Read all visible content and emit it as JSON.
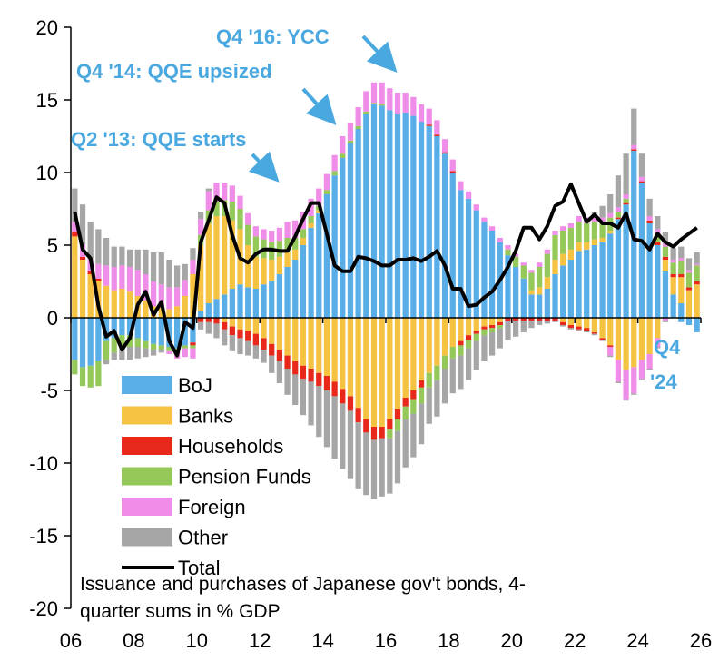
{
  "chart_data": {
    "type": "bar",
    "stacked": true,
    "note": "Issuance and purchases of Japanese gov't bonds, 4-quarter sums in % GDP",
    "note_lines": [
      "Issuance and purchases of Japanese gov't bonds, 4-",
      "quarter sums in % GDP"
    ],
    "ylim": [
      -20,
      20
    ],
    "yticks": [
      20,
      15,
      10,
      5,
      0,
      -5,
      -10,
      -15,
      -20
    ],
    "ytick_labels": [
      "20",
      "15",
      "10",
      "5",
      "0",
      "-5",
      "-10",
      "-15",
      "-20"
    ],
    "xlim": [
      2006,
      2026
    ],
    "xticks": [
      2006,
      2008,
      2010,
      2012,
      2014,
      2016,
      2018,
      2020,
      2022,
      2024,
      2026
    ],
    "xtick_labels": [
      "06",
      "08",
      "10",
      "12",
      "14",
      "16",
      "18",
      "20",
      "22",
      "24",
      "26"
    ],
    "start_label": "2006Q1",
    "colors": {
      "BoJ": "#5aaee8",
      "Banks": "#f5c242",
      "Households": "#e8281a",
      "Pension Funds": "#94c95a",
      "Foreign": "#f08de8",
      "Other": "#a6a6a6",
      "Total": "#000000",
      "annotation": "#4aa8e0"
    },
    "legend": [
      "BoJ",
      "Banks",
      "Households",
      "Pension Funds",
      "Foreign",
      "Other",
      "Total"
    ],
    "legend_placement": "lower-left",
    "annotations": [
      {
        "text": "Q2 '13: QQE starts",
        "x": 2013.25
      },
      {
        "text": "Q4 '14: QQE upsized",
        "x": 2014.75
      },
      {
        "text": "Q4 '16: YCC",
        "x": 2016.75
      }
    ],
    "end_label_lines": [
      "Q4",
      "'24"
    ],
    "series": [
      {
        "name": "BoJ",
        "pos": [
          0,
          0,
          0,
          0,
          0,
          0,
          0,
          0,
          0,
          0,
          0,
          0,
          0,
          0,
          0,
          0,
          0.5,
          1,
          1.3,
          1.6,
          2,
          2.3,
          2.1,
          2,
          2.3,
          2.5,
          3,
          3.5,
          4,
          5,
          6.2,
          7.2,
          8.5,
          9.8,
          11,
          12,
          13,
          14,
          14.7,
          14.6,
          14.3,
          14,
          14.1,
          13.9,
          13.5,
          13.2,
          12.5,
          11.3,
          10,
          8.8,
          8.2,
          7.4,
          6.6,
          6,
          5.2,
          4.3,
          3.5,
          2.7,
          1.6,
          1.6,
          2,
          3,
          3.6,
          4,
          4.6,
          4.7,
          5,
          5.2,
          5.8,
          6.8,
          7.8,
          11.5,
          9.3,
          6.5,
          5,
          3.2,
          1.6,
          1,
          0,
          0
        ],
        "neg": [
          -2.9,
          -3.4,
          -3.3,
          -3,
          -1.6,
          -1.4,
          -1.2,
          -1.2,
          -1.4,
          -1.6,
          -1.8,
          -1.9,
          -2,
          -2.1,
          -1.9,
          -1.7,
          0,
          0,
          0,
          0,
          0,
          0,
          0,
          0,
          0,
          0,
          0,
          0,
          0,
          0,
          0,
          0,
          0,
          0,
          0,
          0,
          0,
          0,
          0,
          0,
          0,
          0,
          0,
          0,
          0,
          0,
          0,
          0,
          0,
          0,
          0,
          0,
          0,
          0,
          0,
          0,
          0,
          0,
          0,
          0,
          0,
          0,
          0,
          0,
          0,
          0,
          0,
          0,
          0,
          0,
          0,
          0,
          0,
          0,
          0,
          0,
          0,
          -0.3,
          -0.5,
          -1
        ]
      },
      {
        "name": "Banks",
        "pos": [
          5.6,
          4,
          3,
          2.5,
          2.2,
          1.9,
          2,
          1.8,
          1.5,
          1.2,
          0.8,
          0.7,
          0.6,
          0.8,
          1.5,
          3,
          4.5,
          5.5,
          5.7,
          5.4,
          4.7,
          3.8,
          2.9,
          2.2,
          1.8,
          1.5,
          1.2,
          1,
          0.7,
          0.5,
          0.3,
          0.2,
          0,
          0,
          0,
          0,
          0,
          0,
          0,
          0,
          0,
          0,
          0,
          0,
          0,
          0,
          0,
          0,
          0,
          0,
          0,
          0,
          0,
          0,
          0,
          0,
          0,
          0,
          0.3,
          0.5,
          0.8,
          1,
          0.8,
          0.7,
          0.6,
          0.5,
          0.4,
          0.3,
          0.2,
          0,
          0,
          0,
          0,
          0,
          0,
          0.8,
          1.2,
          1.8,
          1.9,
          2.3
        ],
        "neg": [
          0,
          0,
          0,
          0,
          0,
          0,
          0,
          0,
          0,
          0,
          0,
          0,
          0,
          0,
          0,
          0,
          0,
          0,
          0,
          -0.3,
          -0.6,
          -0.8,
          -0.9,
          -1.1,
          -1.4,
          -1.8,
          -2.2,
          -2.6,
          -3,
          -3.3,
          -3.5,
          -3.8,
          -4,
          -4.4,
          -4.9,
          -5.4,
          -6.2,
          -7,
          -7.5,
          -7.5,
          -7,
          -6.3,
          -5.5,
          -5,
          -4.3,
          -3.8,
          -3.3,
          -2.6,
          -2,
          -1.6,
          -1.2,
          -0.9,
          -0.6,
          -0.5,
          -0.3,
          0,
          0,
          0,
          0,
          0,
          0,
          0,
          -0.3,
          -0.5,
          -0.6,
          -0.7,
          -1,
          -1.4,
          -1.9,
          -2.9,
          -3.6,
          -3.4,
          -2.9,
          -2.5,
          -1.4,
          0,
          0,
          0,
          0,
          0
        ]
      },
      {
        "name": "Households",
        "pos": [
          0.3,
          0.2,
          0.2,
          0.2,
          0,
          0,
          0,
          0,
          0,
          0,
          0,
          0,
          0,
          0,
          0,
          0,
          0,
          0,
          0,
          0,
          0,
          0,
          0,
          0,
          0,
          0,
          0,
          0,
          0,
          0,
          0,
          0,
          0,
          0,
          0,
          0,
          0,
          0,
          0,
          0,
          0,
          0,
          0,
          0,
          0,
          0.1,
          0.1,
          0.1,
          0.1,
          0,
          0,
          0,
          0,
          0,
          0,
          0,
          0,
          0,
          0,
          0,
          0,
          0,
          0,
          0,
          0,
          0,
          0,
          0,
          0,
          0.1,
          0.1,
          0.1,
          0.1,
          0.2,
          0.2,
          0.2,
          0.2,
          0.2,
          0.2,
          0.2
        ],
        "neg": [
          0,
          0,
          0,
          0,
          0,
          0,
          0,
          0,
          0,
          0,
          0,
          0,
          0,
          0,
          0,
          -0.2,
          -0.3,
          -0.3,
          -0.4,
          -0.5,
          -0.6,
          -0.6,
          -0.7,
          -0.8,
          -0.8,
          -0.8,
          -0.8,
          -0.9,
          -0.9,
          -0.9,
          -0.9,
          -0.9,
          -1,
          -1,
          -1,
          -1,
          -1,
          -0.9,
          -0.9,
          -0.8,
          -0.7,
          -0.7,
          -0.6,
          -0.6,
          -0.5,
          0,
          0,
          0,
          0,
          -0.3,
          -0.3,
          -0.2,
          -0.2,
          -0.2,
          -0.2,
          -0.2,
          -0.2,
          -0.2,
          -0.2,
          -0.2,
          -0.2,
          -0.2,
          -0.2,
          -0.2,
          -0.2,
          -0.2,
          -0.1,
          -0.1,
          -0.1,
          0,
          0,
          0,
          0,
          0,
          0,
          0,
          0,
          0,
          0,
          0
        ]
      },
      {
        "name": "Pension Funds",
        "pos": [
          0,
          0,
          0,
          0,
          0,
          0,
          0,
          0,
          0,
          0,
          0,
          0,
          0,
          0,
          0,
          0,
          0.7,
          0.9,
          1,
          1.1,
          1.3,
          1.4,
          1.4,
          1.4,
          1.3,
          1.2,
          1.1,
          1,
          0.8,
          0.6,
          0.5,
          0.3,
          0.3,
          0.3,
          0.3,
          0.2,
          0.2,
          0.2,
          0.1,
          0.1,
          0,
          0,
          0,
          0,
          0,
          0,
          0,
          0,
          0,
          0,
          0,
          0,
          0,
          0,
          0,
          0.4,
          0.7,
          0.9,
          1.2,
          1.4,
          1.6,
          1.7,
          1.6,
          1.5,
          1.4,
          1.3,
          1.2,
          1.1,
          0.9,
          0.4,
          0.3,
          0,
          0,
          0,
          0.6,
          0.7,
          0.8,
          0.9,
          1,
          1.1
        ],
        "neg": [
          -1,
          -1.3,
          -1.5,
          -1.7,
          -1.3,
          -1,
          -1,
          -0.8,
          -0.6,
          -0.5,
          -0.4,
          -0.3,
          -0.3,
          -0.3,
          -0.2,
          -0.2,
          0,
          0,
          0,
          0,
          0,
          0,
          0,
          0,
          0,
          0,
          0,
          0,
          0,
          0,
          0,
          0,
          0,
          0,
          0,
          0,
          0,
          0,
          0,
          0,
          -0.6,
          -0.8,
          -0.9,
          -1,
          -1.1,
          -1,
          -1,
          -0.9,
          -0.8,
          -0.7,
          -0.6,
          -0.5,
          -0.4,
          -0.3,
          -0.2,
          0,
          0,
          0,
          0,
          0,
          0,
          0,
          0,
          0,
          0,
          0,
          0,
          0,
          0,
          0,
          0,
          0,
          0,
          0,
          0,
          0,
          0,
          0,
          0,
          0
        ]
      },
      {
        "name": "Foreign",
        "pos": [
          0.7,
          0.8,
          0.8,
          1,
          1.4,
          1.6,
          1.6,
          1.7,
          1.8,
          1.8,
          1.7,
          1.6,
          1.5,
          1.3,
          1.1,
          1,
          1.1,
          1.3,
          1.3,
          1.2,
          1.1,
          0.9,
          0.8,
          0.7,
          0.7,
          0.8,
          0.9,
          1.1,
          1.2,
          1.2,
          1.2,
          1.2,
          1.1,
          1.1,
          1.2,
          1.2,
          1.3,
          1.4,
          1.4,
          1.5,
          1.5,
          1.5,
          1.4,
          1.3,
          1.2,
          1.1,
          1,
          0.9,
          0.8,
          0.6,
          0.5,
          0.4,
          0.3,
          0.3,
          0.3,
          0.3,
          0.2,
          0.2,
          0.2,
          0.3,
          0.3,
          0.3,
          0.3,
          0.3,
          0.4,
          0.4,
          0.4,
          0.3,
          0.3,
          0.3,
          0.3,
          0.3,
          0.3,
          0.3,
          0.3,
          0.2,
          0.2,
          0.2,
          0.2,
          0.1
        ],
        "neg": [
          0,
          0,
          0,
          0,
          0,
          0,
          0,
          0,
          0,
          0,
          0,
          0,
          -0.2,
          -0.4,
          -0.6,
          -0.7,
          0,
          0,
          0,
          0,
          0,
          0,
          0,
          0,
          0,
          0,
          0,
          0,
          0,
          0,
          0,
          0,
          0,
          0,
          0,
          0,
          0,
          0,
          0,
          0,
          0,
          0,
          0,
          0,
          0,
          0,
          0,
          0,
          0,
          0,
          0,
          0,
          0,
          0,
          0,
          0,
          0,
          0,
          0,
          0,
          0,
          0,
          0,
          0,
          0,
          0,
          0,
          0,
          -0.6,
          -1.5,
          -2,
          -1.8,
          -1.3,
          -1,
          -0.6,
          -0.2,
          0,
          0,
          0,
          0
        ]
      },
      {
        "name": "Other",
        "pos": [
          2.3,
          2.8,
          2.6,
          2.4,
          1.9,
          1.4,
          1.3,
          1.2,
          1.4,
          1.7,
          2,
          2.2,
          1.9,
          1.5,
          1.1,
          0.8,
          0.5,
          0.2,
          0,
          0,
          0,
          0,
          0,
          0,
          0,
          0,
          0,
          0,
          0,
          0,
          0,
          0,
          0,
          0,
          0,
          0,
          0,
          0,
          0,
          0,
          0,
          0,
          0,
          0,
          0,
          0,
          0,
          0,
          0,
          0,
          0,
          0,
          0,
          0,
          0,
          0,
          0,
          0,
          0,
          0,
          0,
          0,
          0,
          0,
          0,
          0,
          0.3,
          0.8,
          1.3,
          2.2,
          2.8,
          2.5,
          1.6,
          1.2,
          0.9,
          0.8,
          0.8,
          0.8,
          0.8,
          0.8
        ],
        "neg": [
          0,
          0,
          0,
          0,
          -0.3,
          -0.5,
          -0.7,
          -0.9,
          -0.8,
          -0.6,
          -0.4,
          -0.2,
          0,
          0,
          0,
          0,
          -0.5,
          -0.8,
          -1,
          -1.1,
          -1.1,
          -1.1,
          -1,
          -0.9,
          -0.9,
          -1.2,
          -1.5,
          -1.8,
          -2.1,
          -2.5,
          -3,
          -3.5,
          -3.9,
          -4.3,
          -4.5,
          -4.7,
          -4.6,
          -4.3,
          -4.1,
          -4,
          -3.8,
          -3.6,
          -3.3,
          -3,
          -2.8,
          -2.5,
          -2.5,
          -2.4,
          -2.4,
          -2.3,
          -2.2,
          -2,
          -1.8,
          -1.6,
          -1.4,
          -1.3,
          -1.1,
          -0.8,
          -0.5,
          -0.3,
          -0.2,
          -0.1,
          -0.1,
          -0.1,
          -0.1,
          -0.1,
          -0.1,
          -0.1,
          -0.1,
          -0.1,
          -0.1,
          -0.1,
          -0.1,
          -0.1,
          -0.1,
          -0.1,
          0,
          0,
          0,
          0
        ]
      }
    ],
    "total": [
      7.3,
      4.7,
      4.1,
      0.8,
      -1.3,
      -0.9,
      -2.2,
      -1.4,
      0.9,
      1.8,
      0.2,
      1.1,
      -1.6,
      -2.6,
      -0.3,
      -0.7,
      5.2,
      6.7,
      8.3,
      7.9,
      5.7,
      4.1,
      3.8,
      4.4,
      4.7,
      4.7,
      4.6,
      4.6,
      5.6,
      6.8,
      7.9,
      7.9,
      5.8,
      3.6,
      3.2,
      3.2,
      4.2,
      4.1,
      3.9,
      3.6,
      3.6,
      4,
      4,
      4.1,
      3.9,
      4.2,
      4.6,
      3.6,
      2,
      2,
      0.8,
      0.9,
      1.4,
      1.8,
      2.6,
      3.5,
      4.6,
      6.2,
      6.2,
      5.4,
      6.3,
      7.7,
      8,
      9.2,
      7.9,
      6.6,
      7.1,
      6.5,
      6.5,
      6.2,
      7.2,
      5.4,
      5.3,
      4.7,
      5.8,
      5.2,
      4.9,
      5.4,
      5.8,
      6.2
    ]
  }
}
